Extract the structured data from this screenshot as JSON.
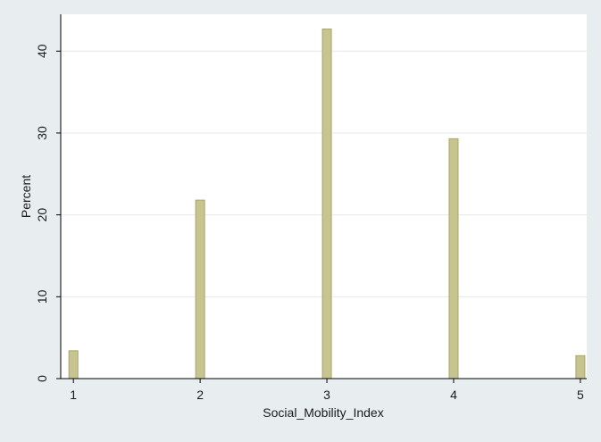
{
  "chart_data": {
    "type": "bar",
    "title": "",
    "xlabel": "Social_Mobility_Index",
    "ylabel": "Percent",
    "x": [
      1,
      2,
      3,
      4,
      5
    ],
    "values": [
      3.4,
      21.8,
      42.7,
      29.3,
      2.8
    ],
    "x_ticks": [
      1,
      2,
      3,
      4,
      5
    ],
    "y_ticks": [
      0,
      10,
      20,
      30,
      40
    ],
    "xlim": [
      0.9,
      5.05
    ],
    "ylim": [
      0,
      44.5
    ],
    "grid": true,
    "bar_color": "#c8c48f",
    "bar_edge_color": "#a8a46c"
  }
}
